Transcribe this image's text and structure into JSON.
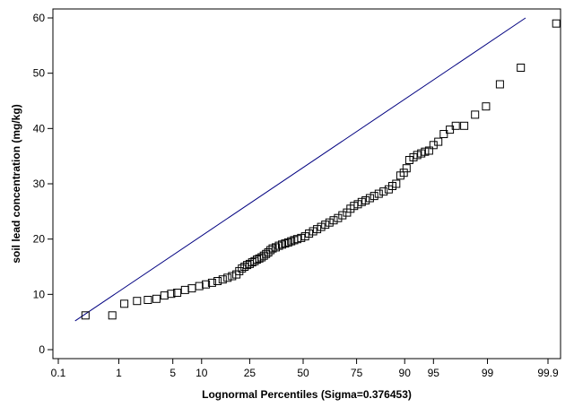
{
  "chart_data": {
    "type": "scatter",
    "title": "",
    "xlabel": "Lognormal Percentiles (Sigma=0.376453)",
    "ylabel": "soil lead concentration (mg/kg)",
    "x_scale": "normal-probability",
    "x_ticks": [
      0.1,
      1,
      5,
      10,
      25,
      50,
      75,
      90,
      95,
      99,
      99.9
    ],
    "x_tick_labels": [
      "0.1",
      "1",
      "5",
      "10",
      "25",
      "50",
      "75",
      "90",
      "95",
      "99",
      "99.9"
    ],
    "y_ticks": [
      0,
      10,
      20,
      30,
      40,
      50,
      60
    ],
    "y_tick_labels": [
      "0",
      "10",
      "20",
      "30",
      "40",
      "50",
      "60"
    ],
    "ylim": [
      -1,
      61
    ],
    "grid": false,
    "marker": "open-square",
    "colors": {
      "points": "#000000",
      "fit_line": "#000080",
      "axes": "#000000"
    },
    "fit_line": {
      "x": [
        0.2,
        99.75
      ],
      "y": [
        5.2,
        60.0
      ]
    },
    "points": [
      {
        "x": 0.3,
        "y": 6.2
      },
      {
        "x": 0.8,
        "y": 6.2
      },
      {
        "x": 1.2,
        "y": 8.3
      },
      {
        "x": 1.8,
        "y": 8.8
      },
      {
        "x": 2.5,
        "y": 9.0
      },
      {
        "x": 3.2,
        "y": 9.2
      },
      {
        "x": 4.0,
        "y": 9.8
      },
      {
        "x": 4.8,
        "y": 10.1
      },
      {
        "x": 5.6,
        "y": 10.3
      },
      {
        "x": 6.8,
        "y": 10.8
      },
      {
        "x": 8.0,
        "y": 11.1
      },
      {
        "x": 9.5,
        "y": 11.5
      },
      {
        "x": 11.0,
        "y": 11.8
      },
      {
        "x": 12.5,
        "y": 12.1
      },
      {
        "x": 14.0,
        "y": 12.4
      },
      {
        "x": 15.5,
        "y": 12.7
      },
      {
        "x": 17.0,
        "y": 13.0
      },
      {
        "x": 18.5,
        "y": 13.3
      },
      {
        "x": 20.0,
        "y": 13.6
      },
      {
        "x": 21.0,
        "y": 14.2
      },
      {
        "x": 22.0,
        "y": 14.7
      },
      {
        "x": 23.0,
        "y": 15.0
      },
      {
        "x": 24.0,
        "y": 15.3
      },
      {
        "x": 25.0,
        "y": 15.5
      },
      {
        "x": 26.0,
        "y": 15.8
      },
      {
        "x": 27.0,
        "y": 16.0
      },
      {
        "x": 28.0,
        "y": 16.3
      },
      {
        "x": 29.0,
        "y": 16.5
      },
      {
        "x": 30.0,
        "y": 16.7
      },
      {
        "x": 31.0,
        "y": 17.0
      },
      {
        "x": 32.0,
        "y": 17.3
      },
      {
        "x": 33.0,
        "y": 17.6
      },
      {
        "x": 34.0,
        "y": 18.0
      },
      {
        "x": 35.0,
        "y": 18.3
      },
      {
        "x": 36.5,
        "y": 18.5
      },
      {
        "x": 38.0,
        "y": 18.8
      },
      {
        "x": 39.5,
        "y": 19.0
      },
      {
        "x": 41.0,
        "y": 19.2
      },
      {
        "x": 42.5,
        "y": 19.4
      },
      {
        "x": 44.0,
        "y": 19.6
      },
      {
        "x": 45.5,
        "y": 19.8
      },
      {
        "x": 47.0,
        "y": 20.0
      },
      {
        "x": 49.0,
        "y": 20.2
      },
      {
        "x": 51.0,
        "y": 20.5
      },
      {
        "x": 53.0,
        "y": 21.0
      },
      {
        "x": 55.0,
        "y": 21.4
      },
      {
        "x": 57.0,
        "y": 21.8
      },
      {
        "x": 59.0,
        "y": 22.2
      },
      {
        "x": 61.0,
        "y": 22.6
      },
      {
        "x": 63.0,
        "y": 23.0
      },
      {
        "x": 65.0,
        "y": 23.4
      },
      {
        "x": 67.0,
        "y": 23.8
      },
      {
        "x": 69.0,
        "y": 24.3
      },
      {
        "x": 71.0,
        "y": 24.8
      },
      {
        "x": 72.5,
        "y": 25.5
      },
      {
        "x": 74.0,
        "y": 26.0
      },
      {
        "x": 75.5,
        "y": 26.3
      },
      {
        "x": 77.0,
        "y": 26.7
      },
      {
        "x": 78.5,
        "y": 27.0
      },
      {
        "x": 80.0,
        "y": 27.4
      },
      {
        "x": 81.5,
        "y": 27.8
      },
      {
        "x": 83.0,
        "y": 28.2
      },
      {
        "x": 84.5,
        "y": 28.6
      },
      {
        "x": 86.0,
        "y": 29.0
      },
      {
        "x": 87.0,
        "y": 29.6
      },
      {
        "x": 88.0,
        "y": 30.0
      },
      {
        "x": 89.0,
        "y": 31.5
      },
      {
        "x": 89.8,
        "y": 32.0
      },
      {
        "x": 90.4,
        "y": 32.8
      },
      {
        "x": 91.0,
        "y": 34.3
      },
      {
        "x": 91.8,
        "y": 34.8
      },
      {
        "x": 92.5,
        "y": 35.2
      },
      {
        "x": 93.2,
        "y": 35.5
      },
      {
        "x": 93.8,
        "y": 35.8
      },
      {
        "x": 94.4,
        "y": 36.0
      },
      {
        "x": 95.0,
        "y": 37.0
      },
      {
        "x": 95.6,
        "y": 37.6
      },
      {
        "x": 96.2,
        "y": 39.0
      },
      {
        "x": 96.8,
        "y": 39.8
      },
      {
        "x": 97.3,
        "y": 40.5
      },
      {
        "x": 97.9,
        "y": 40.5
      },
      {
        "x": 98.5,
        "y": 42.5
      },
      {
        "x": 98.95,
        "y": 44.0
      },
      {
        "x": 99.35,
        "y": 48.0
      },
      {
        "x": 99.7,
        "y": 51.0
      },
      {
        "x": 99.93,
        "y": 59.0
      }
    ]
  }
}
